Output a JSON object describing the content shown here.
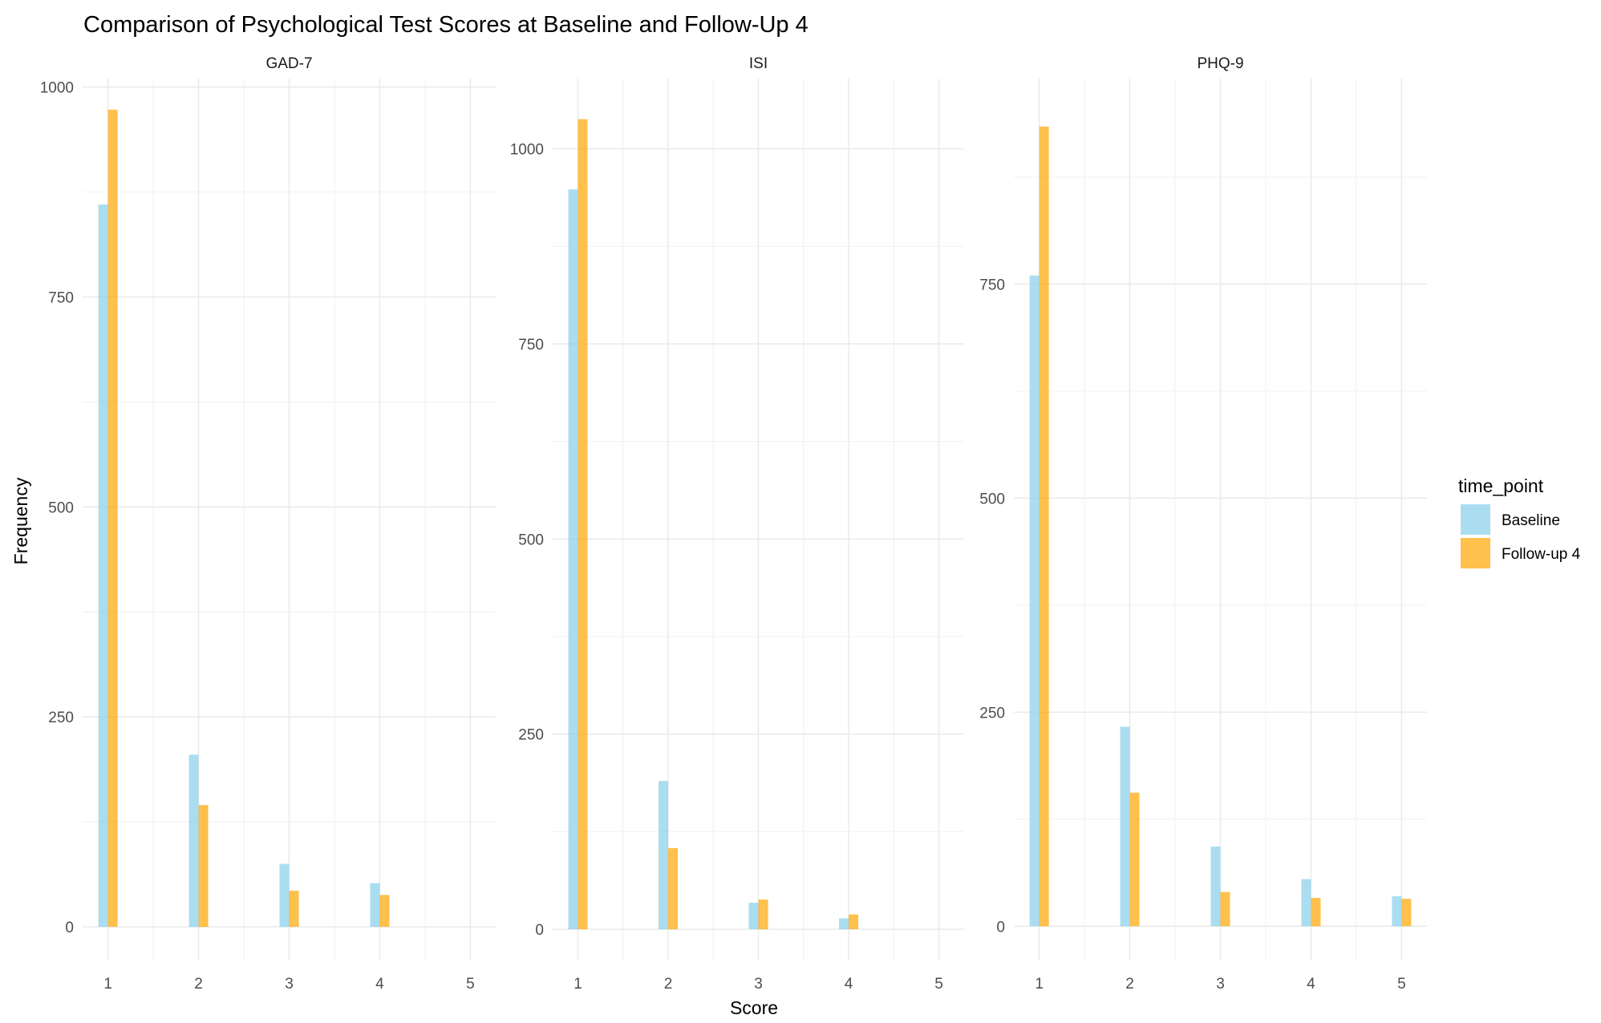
{
  "chart_data": {
    "type": "bar",
    "title": "Comparison of Psychological Test Scores at Baseline and Follow-Up 4",
    "xlabel": "Score",
    "ylabel": "Frequency",
    "legend": {
      "title": "time_point",
      "position": "right",
      "entries": [
        {
          "name": "Baseline",
          "color": "#87CEEB"
        },
        {
          "name": "Follow-up 4",
          "color": "#FFA500"
        }
      ]
    },
    "grid": true,
    "categories": [
      "1",
      "2",
      "3",
      "4",
      "5"
    ],
    "panels": [
      {
        "name": "GAD-7",
        "ylim": [
          -40,
          1010
        ],
        "yticks": [
          0,
          250,
          500,
          750,
          1000
        ],
        "yticks_labels": [
          "0",
          "250",
          "500",
          "750",
          "1000"
        ],
        "series": [
          {
            "name": "Baseline",
            "values": [
              860,
              205,
              75,
              52,
              0
            ]
          },
          {
            "name": "Follow-up 4",
            "values": [
              973,
              145,
              43,
              38,
              0
            ]
          }
        ]
      },
      {
        "name": "ISI",
        "ylim": [
          -40,
          1090
        ],
        "yticks": [
          0,
          250,
          500,
          750,
          1000
        ],
        "yticks_labels": [
          "0",
          "250",
          "500",
          "750",
          "1000"
        ],
        "series": [
          {
            "name": "Baseline",
            "values": [
              948,
              190,
              34,
              14,
              0
            ]
          },
          {
            "name": "Follow-up 4",
            "values": [
              1038,
              104,
              38,
              19,
              0
            ]
          }
        ]
      },
      {
        "name": "PHQ-9",
        "ylim": [
          -40,
          990
        ],
        "yticks": [
          0,
          250,
          500,
          750
        ],
        "yticks_labels": [
          "0",
          "250",
          "500",
          "750"
        ],
        "series": [
          {
            "name": "Baseline",
            "values": [
              760,
              233,
              93,
              55,
              35
            ]
          },
          {
            "name": "Follow-up 4",
            "values": [
              934,
              156,
              40,
              33,
              32
            ]
          }
        ]
      }
    ]
  }
}
